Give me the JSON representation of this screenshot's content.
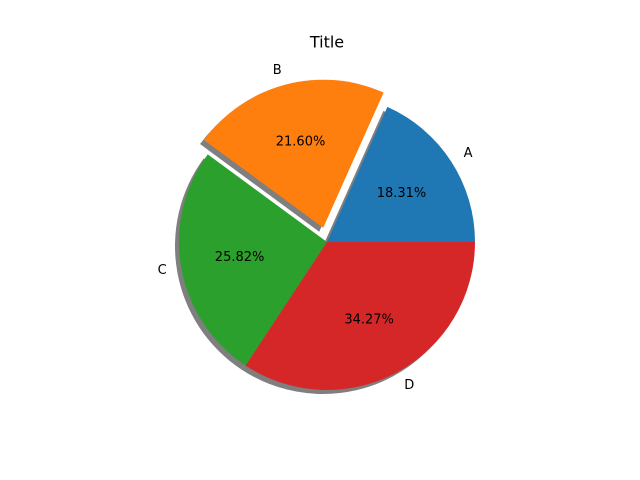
{
  "chart_data": {
    "type": "pie",
    "title": "Title",
    "categories": [
      "A",
      "B",
      "C",
      "D"
    ],
    "values": [
      18.31,
      21.6,
      25.82,
      34.27
    ],
    "value_labels": [
      "18.31%",
      "21.60%",
      "25.82%",
      "34.27%"
    ],
    "colors": [
      "#1f77b4",
      "#ff7f0e",
      "#2ca02c",
      "#d62728"
    ],
    "explode": [
      0,
      0.1,
      0,
      0
    ],
    "shadow": true
  }
}
